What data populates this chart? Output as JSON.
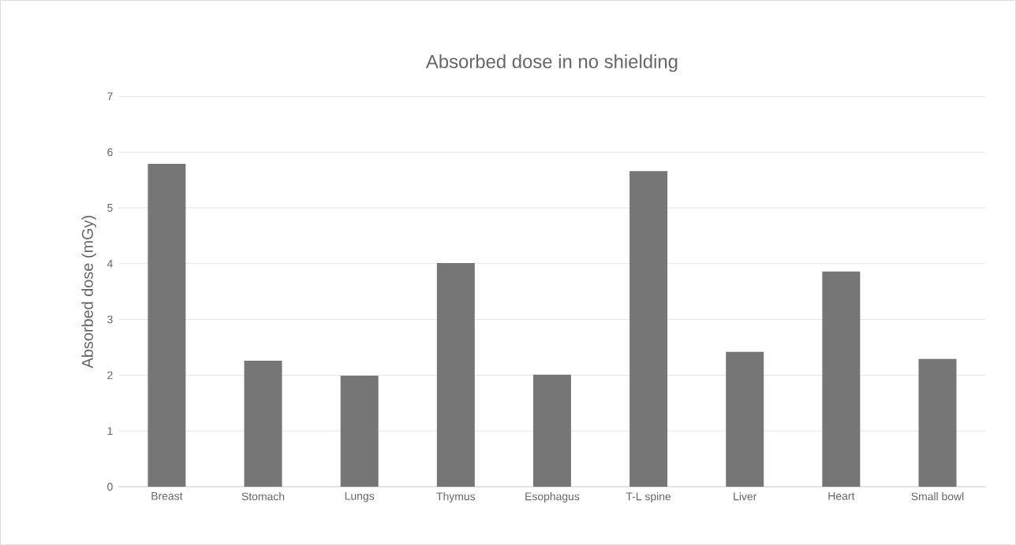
{
  "chart_data": {
    "type": "bar",
    "title": "Absorbed dose in no shielding",
    "ylabel": "Absorbed dose (mGy)",
    "categories": [
      "Breast",
      "Stomach",
      "Lungs",
      "Thymus",
      "Esophagus",
      "T-L spine",
      "Liver",
      "Heart",
      "Small bowl"
    ],
    "values": [
      5.79,
      2.26,
      1.99,
      4.01,
      2.01,
      5.66,
      2.42,
      3.86,
      2.29
    ],
    "color": "#767676",
    "ylim": [
      0,
      7
    ],
    "yticks": [
      0,
      1,
      2,
      3,
      4,
      5,
      6,
      7
    ],
    "grid": "y"
  }
}
